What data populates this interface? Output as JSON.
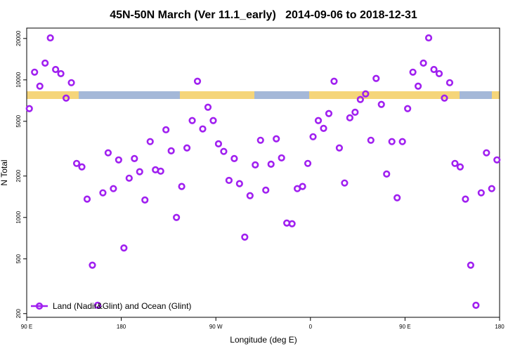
{
  "chart_data": {
    "type": "scatter",
    "title": "45N-50N March (Ver 11.1_early)   2014-09-06 to 2018-12-31",
    "x_label": "Longitude (deg E)",
    "y_label": "N Total",
    "x": [
      92.5,
      97.5,
      102.5,
      107.5,
      112.5,
      117.5,
      122.5,
      127.5,
      132.5,
      137.5,
      142.5,
      147.5,
      152.5,
      157.5,
      162.5,
      167.5,
      172.5,
      177.5,
      182.5,
      187.5,
      192.5,
      197.5,
      202.5,
      207.5,
      212.5,
      217.5,
      222.5,
      227.5,
      232.5,
      237.5,
      242.5,
      247.5,
      252.5,
      257.5,
      262.5,
      267.5,
      272.5,
      277.5,
      282.5,
      287.5,
      292.5,
      297.5,
      302.5,
      307.5,
      312.5,
      317.5,
      322.5,
      327.5,
      332.5,
      337.5,
      342.5,
      347.5,
      352.5,
      357.5,
      362.5,
      367.5,
      372.5,
      377.5,
      382.5,
      387.5,
      392.5,
      397.5,
      402.5,
      407.5,
      412.5,
      417.5,
      422.5,
      427.5,
      432.5,
      437.5,
      442.5,
      447.5,
      452.5,
      457.5,
      462.5,
      467.5,
      472.5,
      477.5,
      482.5,
      487.5,
      492.5,
      497.5,
      502.5,
      507.5,
      512.5,
      517.5,
      522.5,
      527.5,
      532.5,
      537.5
    ],
    "series": [
      {
        "name": "Land (Nadir&Glint) and Ocean (Glint)",
        "color": "#a020f0",
        "values": [
          6180,
          11380,
          9000,
          13250,
          20200,
          11900,
          11100,
          7370,
          9540,
          2470,
          2330,
          1360,
          450,
          230,
          1510,
          2950,
          1620,
          2620,
          600,
          1930,
          2680,
          2150,
          1340,
          3560,
          2220,
          2170,
          4340,
          3050,
          1000,
          1680,
          3200,
          5060,
          9770,
          4400,
          6330,
          5060,
          3430,
          3020,
          1860,
          2680,
          1760,
          720,
          1440,
          2410,
          3640,
          1580,
          2440,
          3730,
          2710,
          910,
          900,
          1620,
          1680,
          2470,
          3860,
          5060,
          4440,
          5690,
          9770,
          3200,
          1780,
          5300,
          5820,
          7200,
          7910,
          3640,
          10240,
          6630,
          2070,
          3560,
          1390,
          3560,
          6180,
          11380,
          9000,
          13250,
          20200,
          11900,
          11100,
          7370,
          9540,
          2470,
          2330,
          1360,
          450,
          230,
          1510,
          2950,
          1620,
          2620
        ]
      }
    ],
    "xlim": [
      90,
      540
    ],
    "xticks": [
      {
        "value": 90,
        "label": "90 E"
      },
      180,
      {
        "value": 270,
        "label": "90 W"
      },
      {
        "value": 360,
        "label": "0"
      },
      {
        "value": 450,
        "label": "90 E"
      },
      {
        "value": 540,
        "label": "180"
      }
    ],
    "ylim": [
      188,
      23800
    ],
    "yticks": [
      200,
      500,
      1000,
      2000,
      5000,
      10000,
      20000
    ],
    "log_y": true,
    "legend": "bottomleft"
  }
}
